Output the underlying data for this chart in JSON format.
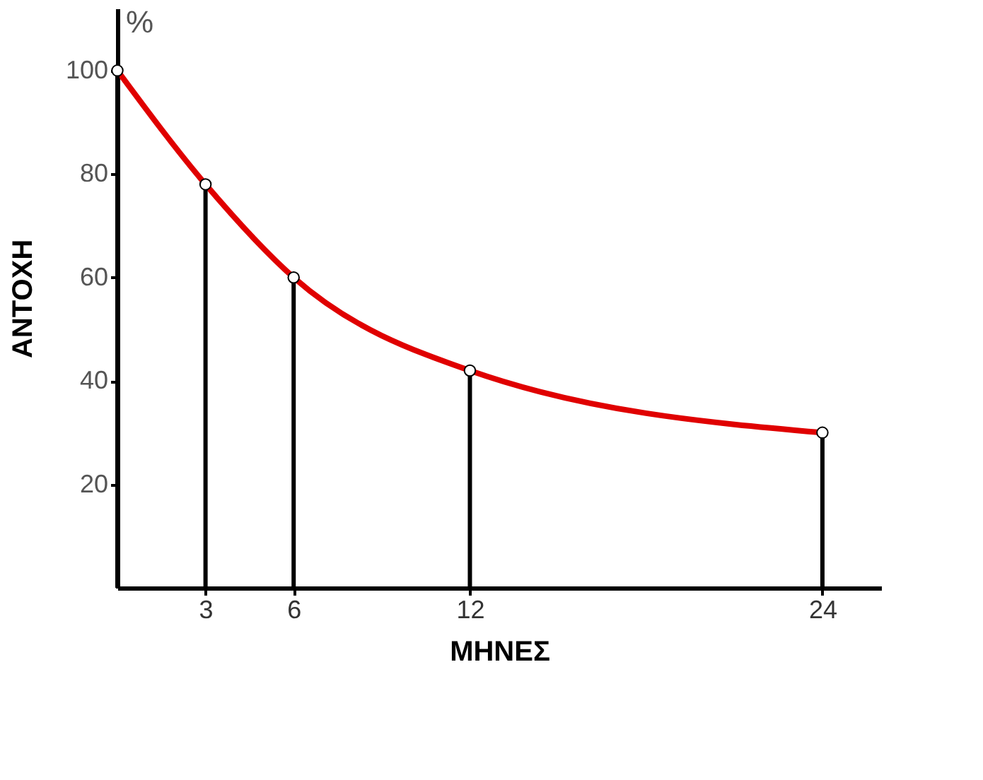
{
  "chart_data": {
    "type": "line",
    "xlabel": "ΜΗΝΕΣ",
    "ylabel": "ΑΝΤΟΧΗ",
    "annotations": [
      "%"
    ],
    "x": [
      0,
      3,
      6,
      12,
      24
    ],
    "series": [
      {
        "color": "#e00000",
        "values": [
          100,
          78,
          60,
          42,
          30
        ]
      },
      {
        "type": "lollipop",
        "color": "#000000",
        "marker": "circle",
        "values": [
          100,
          78,
          60,
          42,
          30
        ]
      }
    ],
    "xlim": [
      0,
      26
    ],
    "xticks": [
      3,
      6,
      12,
      24
    ],
    "ylim": [
      0,
      112
    ],
    "yticks": [
      20,
      40,
      60,
      80,
      100
    ],
    "line_style": "solid",
    "grid": false
  }
}
